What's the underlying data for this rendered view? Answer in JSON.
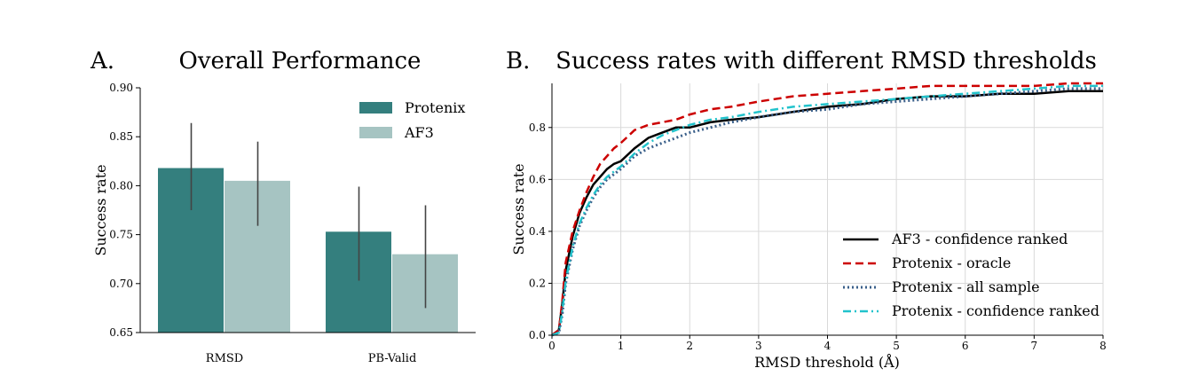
{
  "chart_data": [
    {
      "type": "bar",
      "panel": "A.",
      "title": "Overall Performance",
      "categories": [
        "RMSD",
        "PB-Valid"
      ],
      "series": [
        {
          "name": "Protenix",
          "color": "#347f7e",
          "values": [
            0.818,
            0.753
          ],
          "err_low": [
            0.775,
            0.703
          ],
          "err_high": [
            0.864,
            0.799
          ]
        },
        {
          "name": "AF3",
          "color": "#a6c4c2",
          "values": [
            0.805,
            0.73
          ],
          "err_low": [
            0.759,
            0.675
          ],
          "err_high": [
            0.845,
            0.78
          ]
        }
      ],
      "ylabel": "Success rate",
      "xlabel": "",
      "ylim": [
        0.65,
        0.9
      ],
      "yticks": [
        "0.65",
        "0.70",
        "0.75",
        "0.80",
        "0.85",
        "0.90"
      ],
      "legend_position": "top-right",
      "grid": false
    },
    {
      "type": "line",
      "panel": "B.",
      "title": "Success rates with different RMSD thresholds",
      "xlabel": "RMSD threshold (Å)",
      "ylabel": "Success rate",
      "xlim": [
        0,
        8
      ],
      "ylim": [
        0,
        0.97
      ],
      "xticks": [
        "0",
        "1",
        "2",
        "3",
        "4",
        "5",
        "6",
        "7",
        "8"
      ],
      "yticks": [
        "0.0",
        "0.2",
        "0.4",
        "0.6",
        "0.8"
      ],
      "legend_position": "bottom-right",
      "grid": true,
      "series": [
        {
          "name": "AF3 - confidence ranked",
          "color": "#000000",
          "dash": "solid",
          "x": [
            0,
            0.1,
            0.15,
            0.2,
            0.3,
            0.4,
            0.5,
            0.6,
            0.7,
            0.8,
            0.9,
            1.0,
            1.2,
            1.4,
            1.6,
            1.8,
            2.0,
            2.3,
            2.6,
            3.0,
            3.5,
            4.0,
            4.5,
            5.0,
            5.5,
            6.0,
            6.5,
            7.0,
            7.5,
            8.0
          ],
          "y": [
            0,
            0.02,
            0.12,
            0.25,
            0.38,
            0.47,
            0.53,
            0.58,
            0.61,
            0.64,
            0.66,
            0.67,
            0.72,
            0.76,
            0.78,
            0.8,
            0.8,
            0.82,
            0.83,
            0.84,
            0.86,
            0.88,
            0.89,
            0.91,
            0.92,
            0.92,
            0.93,
            0.93,
            0.94,
            0.94
          ]
        },
        {
          "name": "Protenix - oracle",
          "color": "#cc0000",
          "dash": "dashed",
          "x": [
            0,
            0.1,
            0.15,
            0.2,
            0.3,
            0.4,
            0.5,
            0.6,
            0.7,
            0.8,
            0.9,
            1.0,
            1.2,
            1.4,
            1.6,
            1.8,
            2.0,
            2.3,
            2.6,
            3.0,
            3.5,
            4.0,
            4.5,
            5.0,
            5.5,
            6.0,
            6.5,
            7.0,
            7.5,
            8.0
          ],
          "y": [
            0,
            0.02,
            0.13,
            0.28,
            0.4,
            0.48,
            0.55,
            0.61,
            0.66,
            0.69,
            0.72,
            0.74,
            0.79,
            0.81,
            0.82,
            0.83,
            0.85,
            0.87,
            0.88,
            0.9,
            0.92,
            0.93,
            0.94,
            0.95,
            0.96,
            0.96,
            0.96,
            0.96,
            0.97,
            0.97
          ]
        },
        {
          "name": "Protenix - all sample",
          "color": "#3a5f8a",
          "dash": "dotted",
          "x": [
            0,
            0.1,
            0.15,
            0.2,
            0.3,
            0.4,
            0.5,
            0.6,
            0.7,
            0.8,
            0.9,
            1.0,
            1.2,
            1.4,
            1.6,
            1.8,
            2.0,
            2.3,
            2.6,
            3.0,
            3.5,
            4.0,
            4.5,
            5.0,
            5.5,
            6.0,
            6.5,
            7.0,
            7.5,
            8.0
          ],
          "y": [
            0,
            0.01,
            0.08,
            0.2,
            0.33,
            0.42,
            0.48,
            0.53,
            0.57,
            0.6,
            0.62,
            0.64,
            0.69,
            0.72,
            0.74,
            0.76,
            0.78,
            0.8,
            0.82,
            0.84,
            0.86,
            0.87,
            0.89,
            0.9,
            0.91,
            0.92,
            0.93,
            0.94,
            0.95,
            0.95
          ]
        },
        {
          "name": "Protenix - confidence ranked",
          "color": "#22c3cc",
          "dash": "dashdot",
          "x": [
            0,
            0.1,
            0.15,
            0.2,
            0.3,
            0.4,
            0.5,
            0.6,
            0.7,
            0.8,
            0.9,
            1.0,
            1.2,
            1.4,
            1.6,
            1.8,
            2.0,
            2.3,
            2.6,
            3.0,
            3.5,
            4.0,
            4.5,
            5.0,
            5.5,
            6.0,
            6.5,
            7.0,
            7.5,
            8.0
          ],
          "y": [
            0,
            0.01,
            0.09,
            0.21,
            0.34,
            0.43,
            0.49,
            0.54,
            0.58,
            0.61,
            0.63,
            0.65,
            0.7,
            0.74,
            0.77,
            0.79,
            0.81,
            0.83,
            0.84,
            0.86,
            0.88,
            0.89,
            0.9,
            0.91,
            0.92,
            0.93,
            0.94,
            0.95,
            0.96,
            0.96
          ]
        }
      ]
    }
  ]
}
